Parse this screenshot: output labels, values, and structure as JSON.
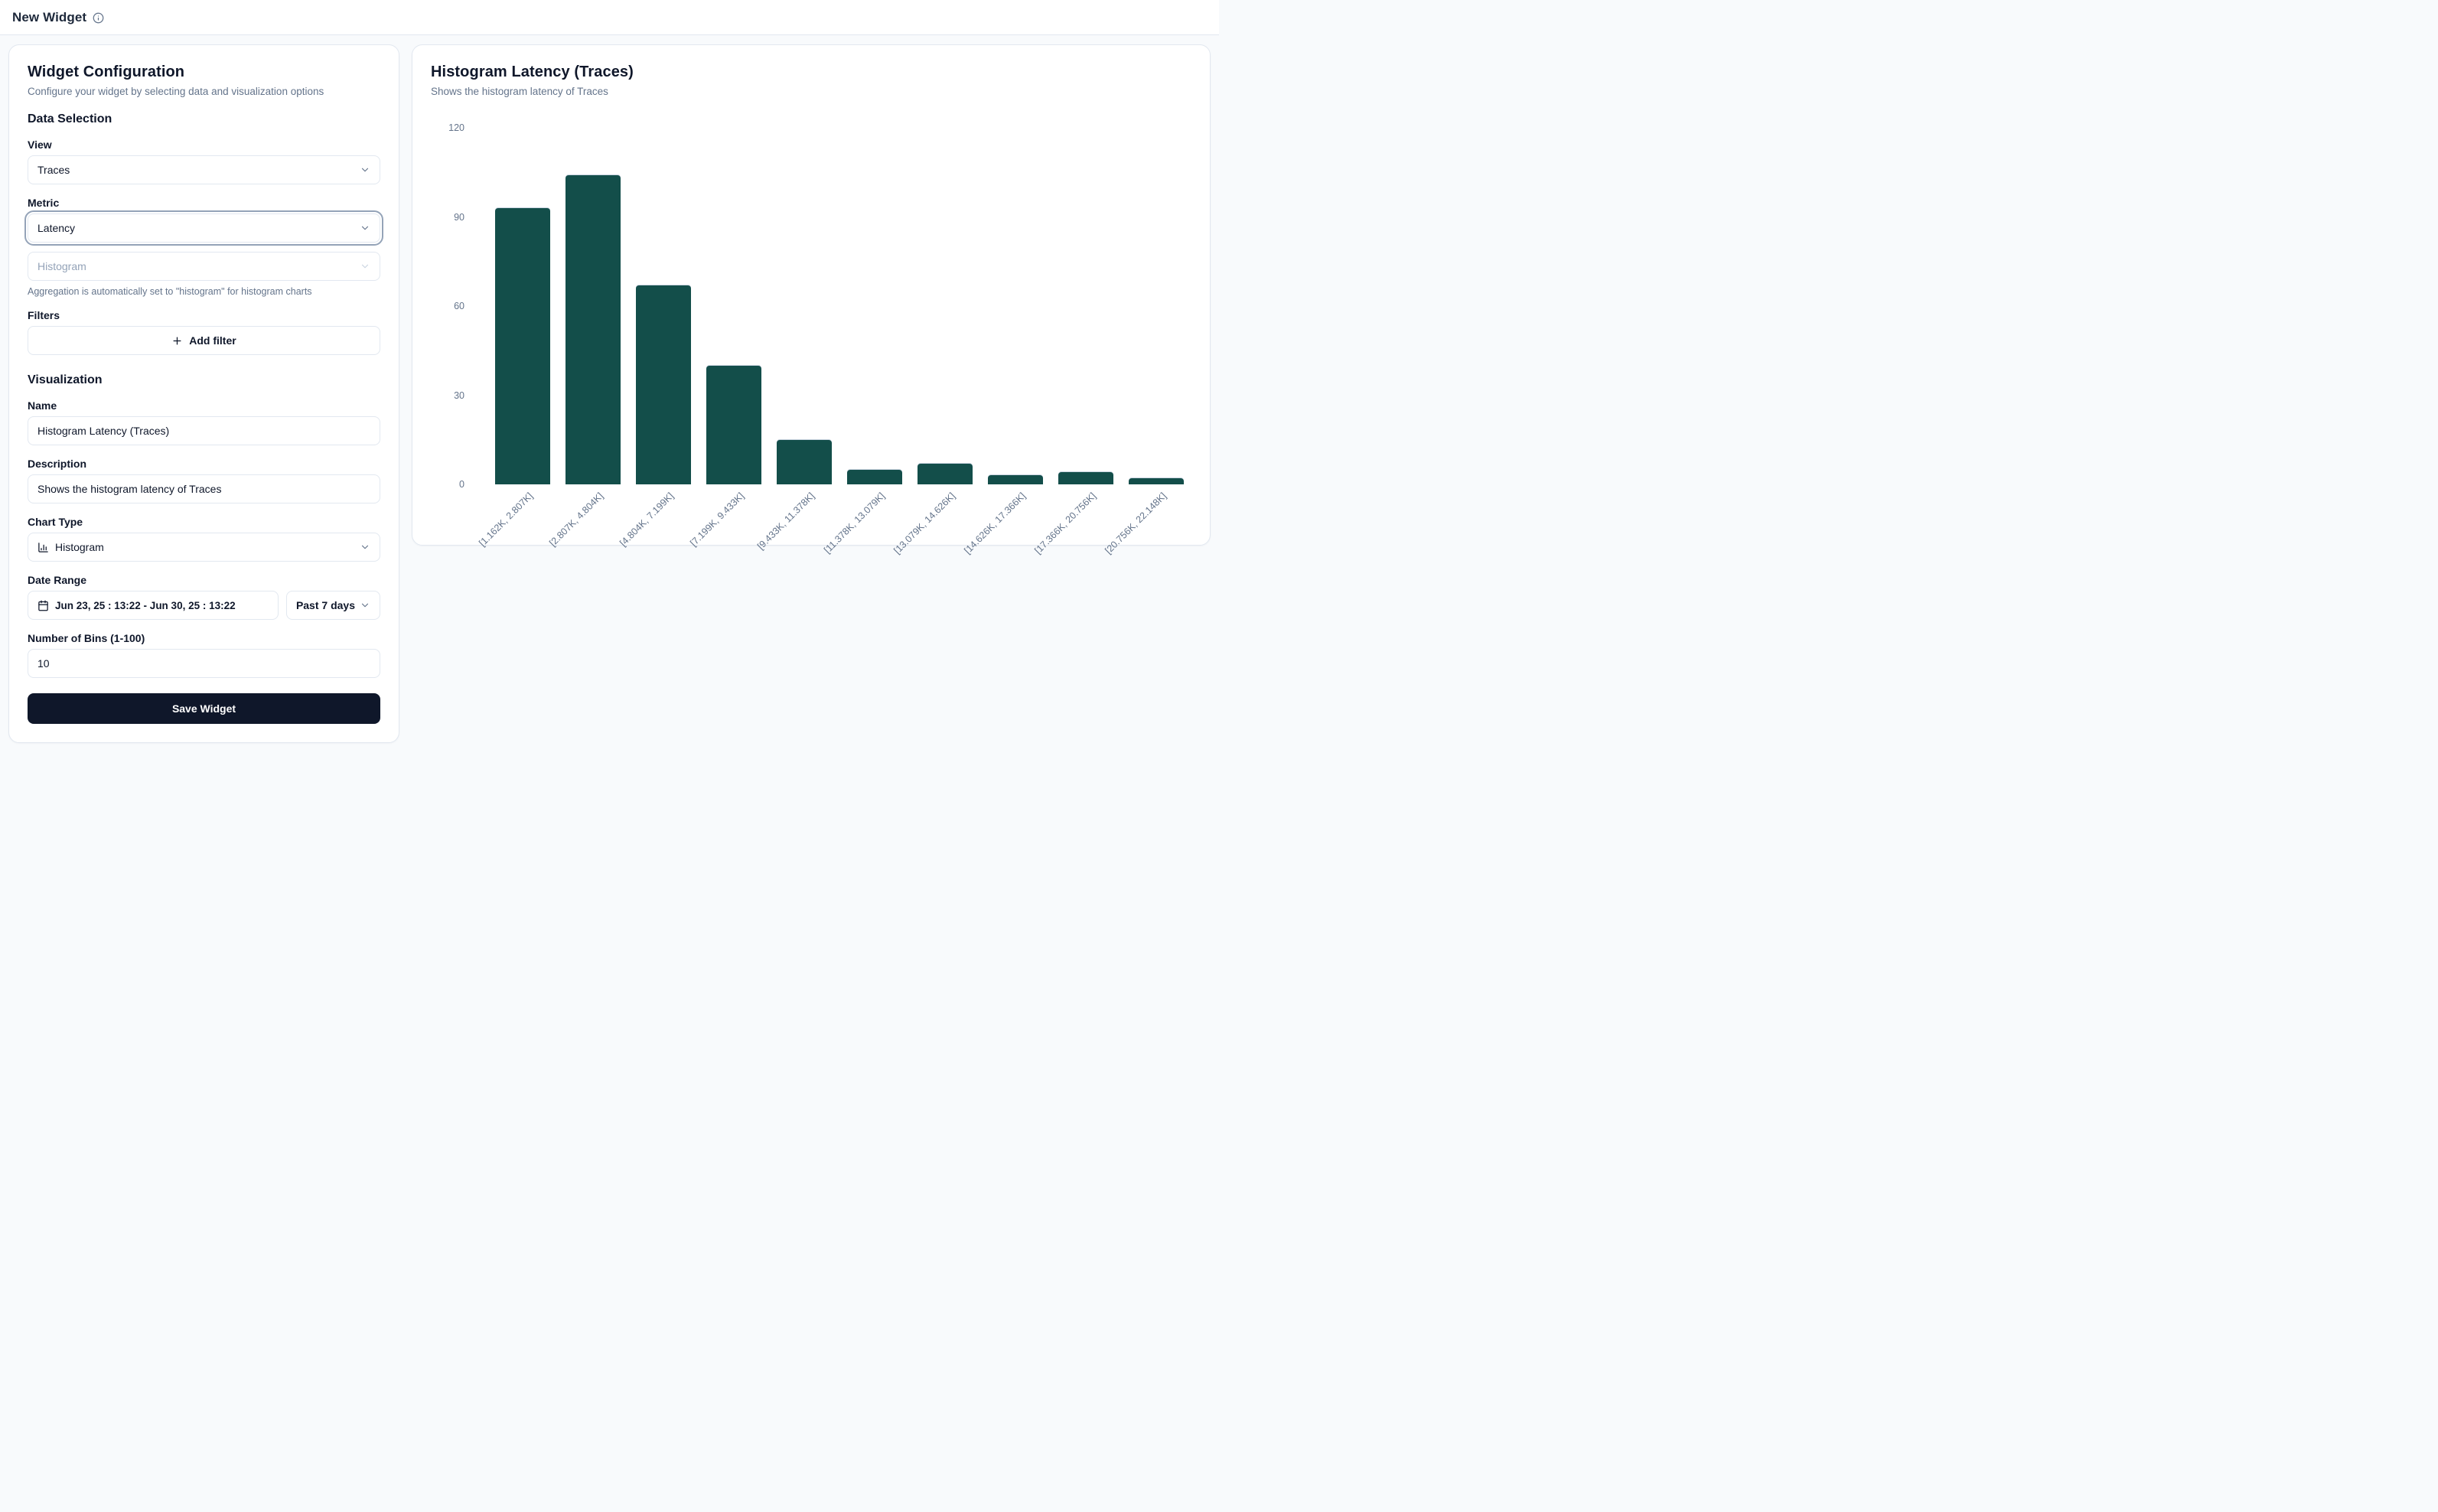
{
  "header": {
    "title": "New Widget"
  },
  "config_panel": {
    "title": "Widget Configuration",
    "subtitle": "Configure your widget by selecting data and visualization options",
    "data_selection": {
      "heading": "Data Selection",
      "view_label": "View",
      "view_value": "Traces",
      "metric_label": "Metric",
      "metric_value": "Latency",
      "aggregation_value": "Histogram",
      "aggregation_note": "Aggregation is automatically set to \"histogram\" for histogram charts",
      "filters_label": "Filters",
      "add_filter_label": "Add filter"
    },
    "visualization": {
      "heading": "Visualization",
      "name_label": "Name",
      "name_value": "Histogram Latency (Traces)",
      "description_label": "Description",
      "description_value": "Shows the histogram latency of Traces",
      "chart_type_label": "Chart Type",
      "chart_type_value": "Histogram",
      "date_range_label": "Date Range",
      "date_range_value": "Jun 23, 25 : 13:22 - Jun 30, 25 : 13:22",
      "date_preset_value": "Past 7 days",
      "bins_label": "Number of Bins (1-100)",
      "bins_value": "10",
      "save_label": "Save Widget"
    }
  },
  "chart_panel": {
    "title": "Histogram Latency (Traces)",
    "subtitle": "Shows the histogram latency of Traces"
  },
  "chart_data": {
    "type": "bar",
    "title": "Histogram Latency (Traces)",
    "categories": [
      "[1.162K, 2.807K]",
      "[2.807K, 4.804K]",
      "[4.804K, 7.199K]",
      "[7.199K, 9.433K]",
      "[9.433K, 11.378K]",
      "[11.378K, 13.079K]",
      "[13.079K, 14.626K]",
      "[14.626K, 17.366K]",
      "[17.366K, 20.756K]",
      "[20.756K, 22.148K]"
    ],
    "values": [
      93,
      104,
      67,
      40,
      15,
      5,
      7,
      3,
      4,
      2
    ],
    "xlabel": "",
    "ylabel": "",
    "ylim": [
      0,
      120
    ],
    "yticks": [
      0,
      30,
      60,
      90,
      120
    ],
    "grid": false,
    "legend": false,
    "x_tick_rotation": -45,
    "bar_color": "#134e4a"
  },
  "colors": {
    "bar": "#134e4a",
    "page_bg": "#f8fafc",
    "card_border": "#e2e8f0",
    "muted_text": "#64748b",
    "save_button_bg": "#0f172a",
    "focus_ring": "#94a3b8"
  }
}
